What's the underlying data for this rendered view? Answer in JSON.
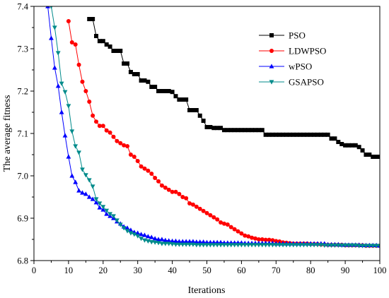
{
  "chart_data": {
    "type": "line",
    "xlabel": "Iterations",
    "ylabel": "The average fitness",
    "xlim": [
      0,
      100
    ],
    "ylim": [
      6.8,
      7.4
    ],
    "x_ticks": [
      0,
      10,
      20,
      30,
      40,
      50,
      60,
      70,
      80,
      90,
      100
    ],
    "y_ticks": [
      6.8,
      6.9,
      7.0,
      7.1,
      7.2,
      7.3,
      7.4
    ],
    "x_tick_labels": [
      "0",
      "10",
      "20",
      "30",
      "40",
      "50",
      "60",
      "70",
      "80",
      "90",
      "100"
    ],
    "y_tick_labels": [
      "6.8",
      "6.9",
      "7.0",
      "7.1",
      "7.2",
      "7.3",
      "7.4"
    ],
    "legend_position": "top-right",
    "grid": false,
    "series": [
      {
        "name": "PSO",
        "color": "#000000",
        "marker": "square",
        "x": [
          16,
          17,
          18,
          19,
          20,
          21,
          22,
          23,
          24,
          25,
          26,
          27,
          28,
          29,
          30,
          31,
          32,
          33,
          34,
          35,
          36,
          37,
          38,
          39,
          40,
          41,
          42,
          43,
          44,
          45,
          46,
          47,
          48,
          49,
          50,
          51,
          52,
          53,
          54,
          55,
          56,
          57,
          58,
          59,
          60,
          61,
          62,
          63,
          64,
          65,
          66,
          67,
          68,
          69,
          70,
          71,
          72,
          73,
          74,
          75,
          76,
          77,
          78,
          79,
          80,
          81,
          82,
          83,
          84,
          85,
          86,
          87,
          88,
          89,
          90,
          91,
          92,
          93,
          94,
          95,
          96,
          97,
          98,
          99,
          100
        ],
        "values": [
          7.37,
          7.37,
          7.33,
          7.318,
          7.318,
          7.31,
          7.305,
          7.295,
          7.295,
          7.295,
          7.265,
          7.265,
          7.245,
          7.24,
          7.24,
          7.225,
          7.225,
          7.222,
          7.21,
          7.21,
          7.2,
          7.2,
          7.2,
          7.2,
          7.198,
          7.188,
          7.18,
          7.18,
          7.18,
          7.155,
          7.155,
          7.155,
          7.142,
          7.13,
          7.115,
          7.115,
          7.113,
          7.113,
          7.113,
          7.108,
          7.108,
          7.108,
          7.108,
          7.108,
          7.108,
          7.108,
          7.108,
          7.108,
          7.108,
          7.108,
          7.108,
          7.097,
          7.097,
          7.097,
          7.097,
          7.097,
          7.097,
          7.097,
          7.097,
          7.097,
          7.097,
          7.097,
          7.097,
          7.097,
          7.097,
          7.097,
          7.097,
          7.097,
          7.097,
          7.097,
          7.088,
          7.088,
          7.08,
          7.075,
          7.072,
          7.072,
          7.072,
          7.072,
          7.068,
          7.06,
          7.05,
          7.05,
          7.045,
          7.045,
          7.045
        ]
      },
      {
        "name": "LDWPSO",
        "color": "#ff0000",
        "marker": "circle",
        "x": [
          10,
          11,
          12,
          13,
          14,
          15,
          16,
          17,
          18,
          19,
          20,
          21,
          22,
          23,
          24,
          25,
          26,
          27,
          28,
          29,
          30,
          31,
          32,
          33,
          34,
          35,
          36,
          37,
          38,
          39,
          40,
          41,
          42,
          43,
          44,
          45,
          46,
          47,
          48,
          49,
          50,
          51,
          52,
          53,
          54,
          55,
          56,
          57,
          58,
          59,
          60,
          61,
          62,
          63,
          64,
          65,
          66,
          67,
          68,
          69,
          70,
          71,
          72,
          73,
          74,
          75,
          76,
          77,
          78,
          79,
          80,
          81,
          82,
          83,
          84,
          85,
          86,
          87,
          88,
          89,
          90,
          91,
          92,
          93,
          94,
          95,
          96,
          97,
          98,
          99,
          100
        ],
        "values": [
          7.365,
          7.315,
          7.31,
          7.262,
          7.222,
          7.2,
          7.175,
          7.142,
          7.128,
          7.118,
          7.118,
          7.107,
          7.102,
          7.092,
          7.082,
          7.077,
          7.072,
          7.07,
          7.05,
          7.045,
          7.035,
          7.022,
          7.017,
          7.012,
          7.005,
          6.995,
          6.987,
          6.977,
          6.972,
          6.967,
          6.962,
          6.962,
          6.957,
          6.95,
          6.947,
          6.935,
          6.932,
          6.927,
          6.922,
          6.917,
          6.912,
          6.907,
          6.902,
          6.897,
          6.89,
          6.887,
          6.885,
          6.879,
          6.874,
          6.869,
          6.864,
          6.859,
          6.857,
          6.854,
          6.852,
          6.85,
          6.85,
          6.849,
          6.849,
          6.848,
          6.846,
          6.845,
          6.843,
          6.842,
          6.841,
          6.84,
          6.84,
          6.84,
          6.84,
          6.84,
          6.839,
          6.839,
          6.839,
          6.838,
          6.838,
          6.837,
          6.837,
          6.837,
          6.837,
          6.837,
          6.836,
          6.836,
          6.836,
          6.836,
          6.836,
          6.836,
          6.835,
          6.835,
          6.835,
          6.835,
          6.835
        ]
      },
      {
        "name": "wPSO",
        "color": "#0000ff",
        "marker": "triangle-up",
        "x": [
          4,
          5,
          6,
          7,
          8,
          9,
          10,
          11,
          12,
          13,
          14,
          15,
          16,
          17,
          18,
          19,
          20,
          21,
          22,
          23,
          24,
          25,
          26,
          27,
          28,
          29,
          30,
          31,
          32,
          33,
          34,
          35,
          36,
          37,
          38,
          39,
          40,
          41,
          42,
          43,
          44,
          45,
          46,
          47,
          48,
          49,
          50,
          51,
          52,
          53,
          54,
          55,
          56,
          57,
          58,
          59,
          60,
          61,
          62,
          63,
          64,
          65,
          66,
          67,
          68,
          69,
          70,
          71,
          72,
          73,
          74,
          75,
          76,
          77,
          78,
          79,
          80,
          81,
          82,
          83,
          84,
          85,
          86,
          87,
          88,
          89,
          90,
          91,
          92,
          93,
          94,
          95,
          96,
          97,
          98,
          99,
          100
        ],
        "values": [
          7.4,
          7.325,
          7.255,
          7.212,
          7.15,
          7.095,
          7.045,
          7.0,
          6.985,
          6.965,
          6.96,
          6.957,
          6.95,
          6.945,
          6.937,
          6.925,
          6.92,
          6.91,
          6.905,
          6.9,
          6.892,
          6.887,
          6.88,
          6.877,
          6.872,
          6.867,
          6.865,
          6.862,
          6.86,
          6.857,
          6.855,
          6.852,
          6.85,
          6.85,
          6.848,
          6.847,
          6.846,
          6.846,
          6.845,
          6.845,
          6.845,
          6.845,
          6.845,
          6.844,
          6.844,
          6.844,
          6.843,
          6.843,
          6.843,
          6.843,
          6.843,
          6.842,
          6.842,
          6.842,
          6.842,
          6.842,
          6.842,
          6.841,
          6.841,
          6.841,
          6.841,
          6.841,
          6.841,
          6.841,
          6.841,
          6.841,
          6.84,
          6.84,
          6.84,
          6.84,
          6.84,
          6.84,
          6.84,
          6.84,
          6.84,
          6.84,
          6.84,
          6.84,
          6.84,
          6.84,
          6.84,
          6.838,
          6.838,
          6.838,
          6.838,
          6.837,
          6.837,
          6.837,
          6.837,
          6.837,
          6.837,
          6.836,
          6.836,
          6.836,
          6.836,
          6.836,
          6.835
        ]
      },
      {
        "name": "GSAPSO",
        "color": "#008b8b",
        "marker": "triangle-down",
        "x": [
          5,
          6,
          7,
          8,
          9,
          10,
          11,
          12,
          13,
          14,
          15,
          16,
          17,
          18,
          19,
          20,
          21,
          22,
          23,
          24,
          25,
          26,
          27,
          28,
          29,
          30,
          31,
          32,
          33,
          34,
          35,
          36,
          37,
          38,
          39,
          40,
          41,
          42,
          43,
          44,
          45,
          46,
          47,
          48,
          49,
          50,
          51,
          52,
          53,
          54,
          55,
          56,
          57,
          58,
          59,
          60,
          61,
          62,
          63,
          64,
          65,
          66,
          67,
          68,
          69,
          70,
          71,
          72,
          73,
          74,
          75,
          76,
          77,
          78,
          79,
          80,
          81,
          82,
          83,
          84,
          85,
          86,
          87,
          88,
          89,
          90,
          91,
          92,
          93,
          94,
          95,
          96,
          97,
          98,
          99,
          100
        ],
        "values": [
          7.4,
          7.35,
          7.29,
          7.218,
          7.198,
          7.165,
          7.105,
          7.07,
          7.055,
          7.015,
          7.002,
          6.99,
          6.975,
          6.945,
          6.935,
          6.927,
          6.918,
          6.91,
          6.905,
          6.895,
          6.885,
          6.877,
          6.87,
          6.865,
          6.862,
          6.858,
          6.852,
          6.848,
          6.846,
          6.844,
          6.843,
          6.842,
          6.84,
          6.84,
          6.84,
          6.839,
          6.838,
          6.838,
          6.838,
          6.838,
          6.838,
          6.838,
          6.837,
          6.837,
          6.837,
          6.837,
          6.837,
          6.837,
          6.837,
          6.837,
          6.837,
          6.837,
          6.837,
          6.837,
          6.837,
          6.837,
          6.837,
          6.837,
          6.837,
          6.837,
          6.837,
          6.837,
          6.837,
          6.837,
          6.837,
          6.837,
          6.837,
          6.837,
          6.837,
          6.837,
          6.837,
          6.837,
          6.837,
          6.837,
          6.837,
          6.837,
          6.837,
          6.837,
          6.837,
          6.836,
          6.836,
          6.836,
          6.836,
          6.836,
          6.836,
          6.836,
          6.836,
          6.836,
          6.836,
          6.835,
          6.835,
          6.835,
          6.835,
          6.835,
          6.835,
          6.835
        ]
      }
    ]
  }
}
